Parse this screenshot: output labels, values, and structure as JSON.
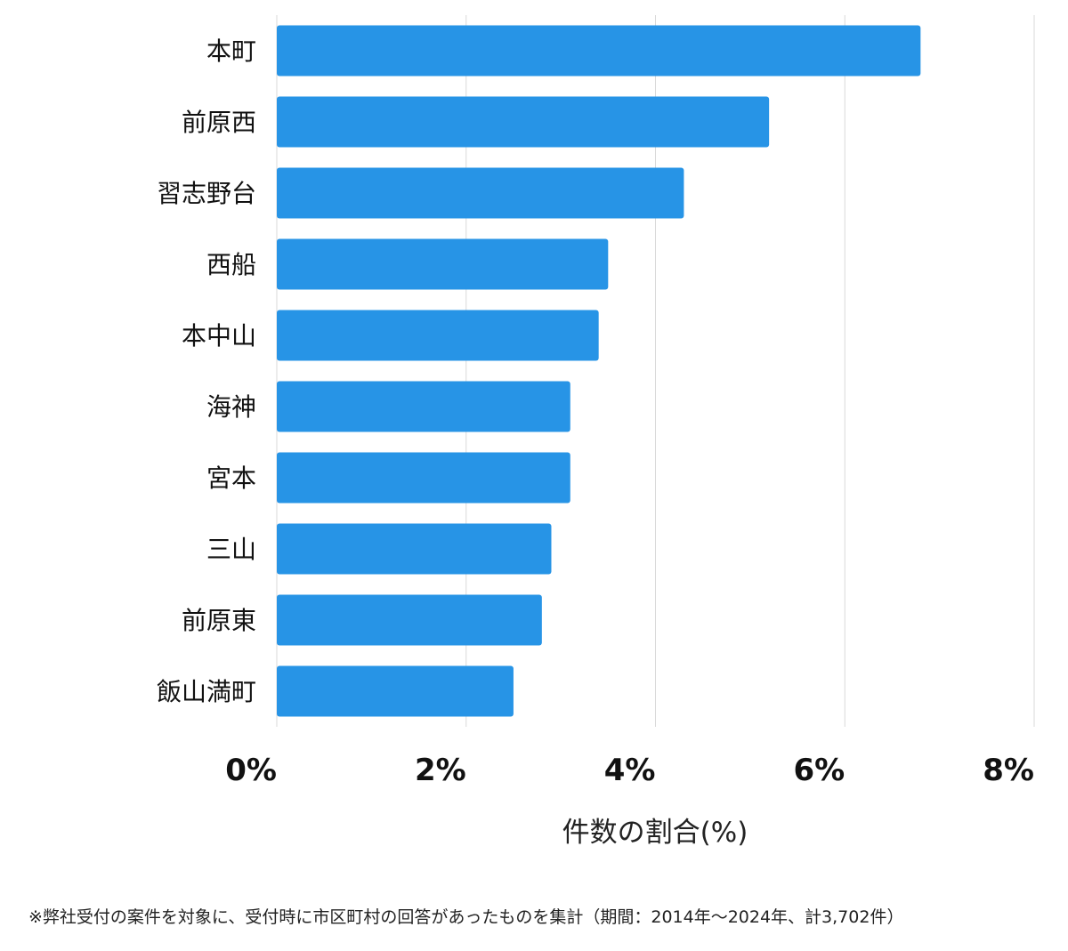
{
  "chart_data": {
    "type": "bar",
    "orientation": "horizontal",
    "categories": [
      "本町",
      "前原西",
      "習志野台",
      "西船",
      "本中山",
      "海神",
      "宮本",
      "三山",
      "前原東",
      "飯山満町"
    ],
    "values": [
      6.8,
      5.2,
      4.3,
      3.5,
      3.4,
      3.1,
      3.1,
      2.9,
      2.8,
      2.5
    ],
    "xlim": [
      0,
      8
    ],
    "x_ticks": [
      0,
      2,
      4,
      6,
      8
    ],
    "x_tick_labels": [
      "0%",
      "2%",
      "4%",
      "6%",
      "8%"
    ],
    "xlabel": "件数の割合(%)",
    "ylabel": "",
    "title": "",
    "grid": "vertical",
    "bar_color": "#2794e6",
    "grid_color": "#d9d9d9"
  },
  "footnote": "※弊社受付の案件を対象に、受付時に市区町村の回答があったものを集計（期間：2014年～2024年、計3,702件）"
}
